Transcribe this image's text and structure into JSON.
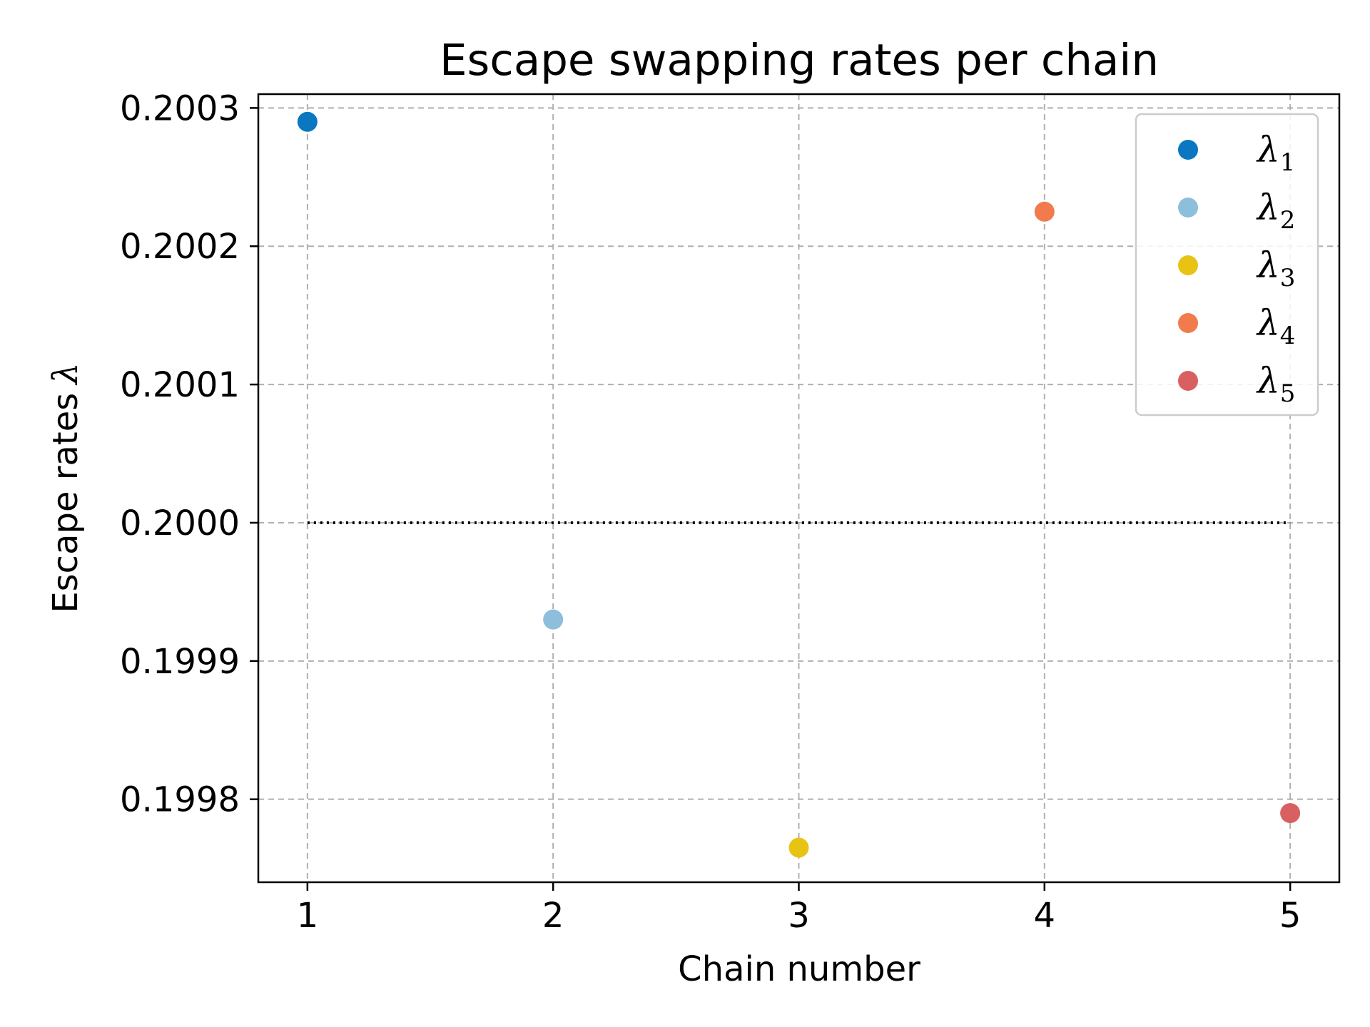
{
  "chart_data": {
    "type": "scatter",
    "title": "Escape swapping rates per chain",
    "xlabel": "Chain number",
    "ylabel_text": "Escape rates",
    "ylabel_symbol": "λ",
    "xlim": [
      0.8,
      5.2
    ],
    "ylim": [
      0.19974,
      0.20031
    ],
    "x_ticks": [
      1,
      2,
      3,
      4,
      5
    ],
    "y_ticks": [
      0.1998,
      0.1999,
      0.2,
      0.2001,
      0.2002,
      0.2003
    ],
    "y_tick_labels": [
      "0.1998",
      "0.1999",
      "0.2000",
      "0.2001",
      "0.2002",
      "0.2003"
    ],
    "grid": true,
    "legend_position": "top-right",
    "reference_line": {
      "y": 0.2,
      "x_from": 1,
      "x_to": 5,
      "style": "dotted",
      "color": "#000000"
    },
    "series": [
      {
        "name": "λ",
        "sub": "1",
        "x": 1,
        "y": 0.20029,
        "color": "#0a77c0"
      },
      {
        "name": "λ",
        "sub": "2",
        "x": 2,
        "y": 0.19993,
        "color": "#8dbedc"
      },
      {
        "name": "λ",
        "sub": "3",
        "x": 3,
        "y": 0.199765,
        "color": "#e9c314"
      },
      {
        "name": "λ",
        "sub": "4",
        "x": 4,
        "y": 0.200225,
        "color": "#f27b4d"
      },
      {
        "name": "λ",
        "sub": "5",
        "x": 5,
        "y": 0.19979,
        "color": "#d96060"
      }
    ]
  }
}
